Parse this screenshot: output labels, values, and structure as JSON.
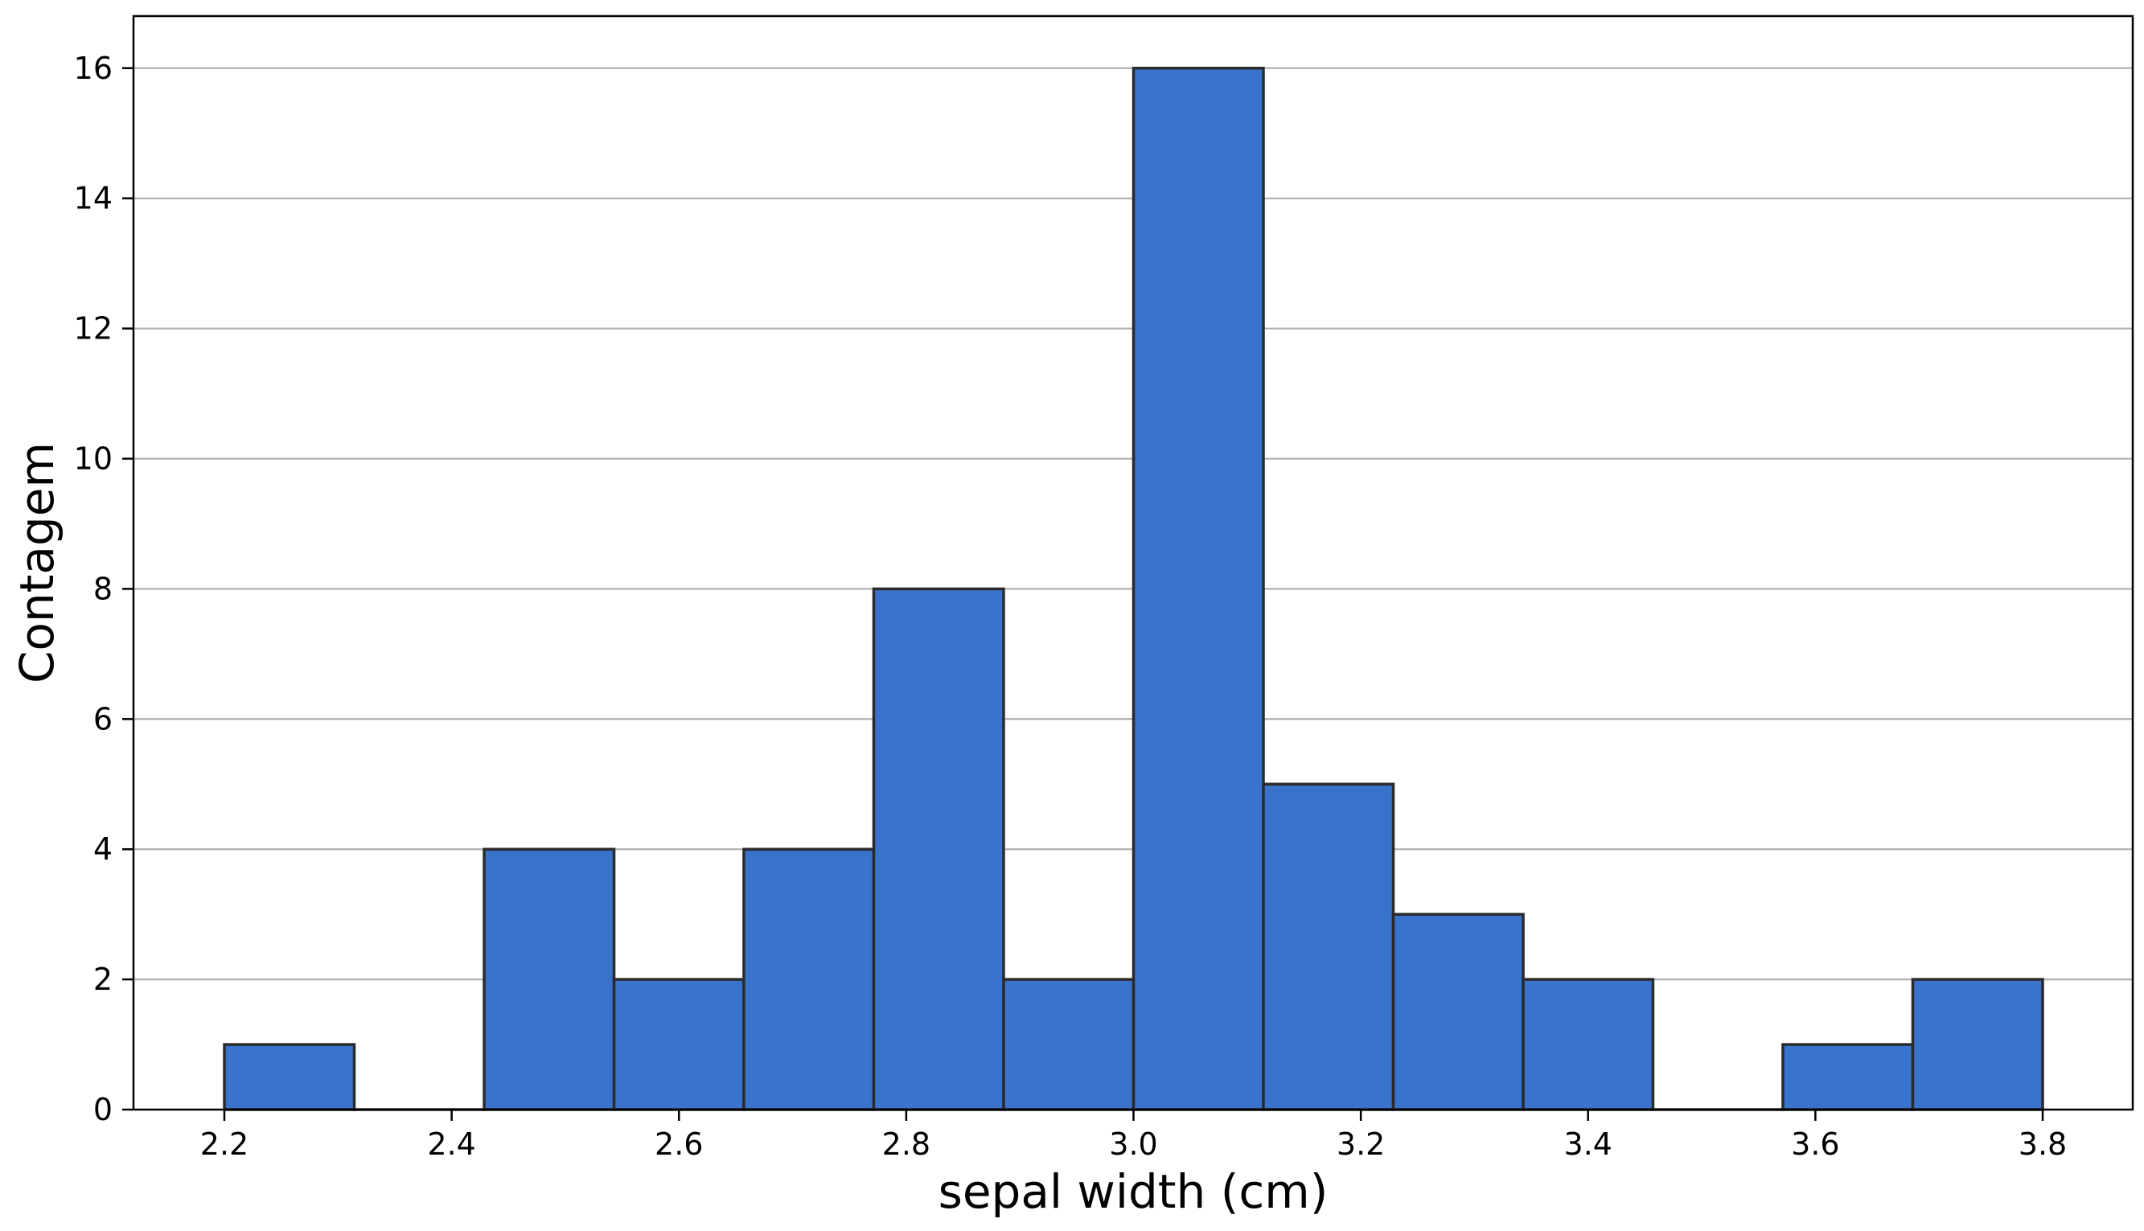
{
  "chart_data": {
    "type": "bar",
    "xlabel": "sepal width (cm)",
    "ylabel": "Contagem",
    "bin_edges": [
      2.2,
      2.3143,
      2.4286,
      2.5429,
      2.6571,
      2.7714,
      2.8857,
      3.0,
      3.1143,
      3.2286,
      3.3429,
      3.4571,
      3.5714,
      3.6857,
      3.8
    ],
    "values": [
      1,
      0,
      4,
      2,
      4,
      8,
      2,
      16,
      5,
      3,
      2,
      0,
      1,
      2
    ],
    "xlim": [
      2.12,
      3.8
    ],
    "ylim": [
      0,
      16.8
    ],
    "x_ticks": [
      2.2,
      2.4,
      2.6,
      2.8,
      3.0,
      3.2,
      3.4,
      3.6,
      3.8
    ],
    "x_tick_labels": [
      "2.2",
      "2.4",
      "2.6",
      "2.8",
      "3.0",
      "3.2",
      "3.4",
      "3.6",
      "3.8"
    ],
    "y_ticks": [
      0,
      2,
      4,
      6,
      8,
      10,
      12,
      14,
      16
    ],
    "y_tick_labels": [
      "0",
      "2",
      "4",
      "6",
      "8",
      "10",
      "12",
      "14",
      "16"
    ],
    "grid": "y",
    "bar_color": "#3a73cc",
    "edge_color": "#2b2b2b",
    "grid_color": "#b0b0b0"
  }
}
